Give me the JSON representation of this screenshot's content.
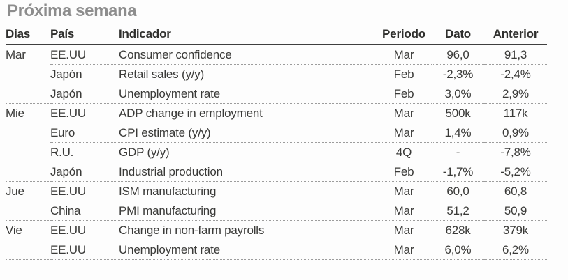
{
  "title": "Próxima semana",
  "colors": {
    "background": "#fdfdfd",
    "title_text": "#8d8d8d",
    "header_text": "#2f2f2d",
    "body_text": "#3a3a38",
    "header_rule": "#3f3f3f",
    "row_rule_dotted": "#9c9c9c"
  },
  "chart_data": {
    "type": "table",
    "title": "Próxima semana",
    "columns": [
      "Dias",
      "País",
      "Indicador",
      "Periodo",
      "Dato",
      "Anterior"
    ],
    "rows": [
      {
        "day": "Mar",
        "country": "EE.UU",
        "indicator": "Consumer confidence",
        "period": "Mar",
        "value": "96,0",
        "previous": "91,3"
      },
      {
        "day": "",
        "country": "Japón",
        "indicator": "Retail sales (y/y)",
        "period": "Feb",
        "value": "-2,3%",
        "previous": "-2,4%"
      },
      {
        "day": "",
        "country": "Japón",
        "indicator": "Unemployment rate",
        "period": "Feb",
        "value": "3,0%",
        "previous": "2,9%"
      },
      {
        "day": "Mie",
        "country": "EE.UU",
        "indicator": "ADP change in employment",
        "period": "Mar",
        "value": "500k",
        "previous": "117k"
      },
      {
        "day": "",
        "country": "Euro",
        "indicator": "CPI estimate (y/y)",
        "period": "Mar",
        "value": "1,4%",
        "previous": "0,9%"
      },
      {
        "day": "",
        "country": "R.U.",
        "indicator": "GDP (y/y)",
        "period": "4Q",
        "value": "-",
        "previous": "-7,8%"
      },
      {
        "day": "",
        "country": "Japón",
        "indicator": "Industrial production",
        "period": "Feb",
        "value": "-1,7%",
        "previous": "-5,2%"
      },
      {
        "day": "Jue",
        "country": "EE.UU",
        "indicator": "ISM manufacturing",
        "period": "Mar",
        "value": "60,0",
        "previous": "60,8"
      },
      {
        "day": "",
        "country": "China",
        "indicator": "PMI manufacturing",
        "period": "Mar",
        "value": "51,2",
        "previous": "50,9"
      },
      {
        "day": "Vie",
        "country": "EE.UU",
        "indicator": "Change in non-farm payrolls",
        "period": "Mar",
        "value": "628k",
        "previous": "379k"
      },
      {
        "day": "",
        "country": "EE.UU",
        "indicator": "Unemployment rate",
        "period": "Mar",
        "value": "6,0%",
        "previous": "6,2%"
      }
    ]
  }
}
